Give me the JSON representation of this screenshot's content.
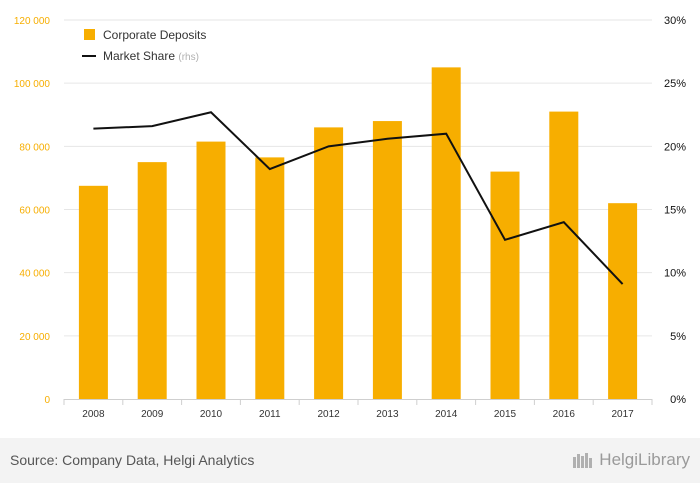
{
  "chart_data": {
    "type": "bar",
    "categories": [
      "2008",
      "2009",
      "2010",
      "2011",
      "2012",
      "2013",
      "2014",
      "2015",
      "2016",
      "2017"
    ],
    "series": [
      {
        "name": "Corporate Deposits",
        "kind": "bar",
        "axis": "left",
        "color": "#f7ae00",
        "values": [
          67500,
          75000,
          81500,
          76500,
          86000,
          88000,
          105000,
          72000,
          91000,
          62000
        ]
      },
      {
        "name": "Market Share",
        "name_suffix": "(rhs)",
        "kind": "line",
        "axis": "right",
        "color": "#111111",
        "values": [
          21.4,
          21.6,
          22.7,
          18.2,
          20.0,
          20.6,
          21.0,
          12.6,
          14.0,
          9.1
        ]
      }
    ],
    "y_left": {
      "ylim": [
        0,
        120000
      ],
      "ticks": [
        0,
        20000,
        40000,
        60000,
        80000,
        100000,
        120000
      ],
      "tick_labels": [
        "0",
        "20 000",
        "40 000",
        "60 000",
        "80 000",
        "100 000",
        "120 000"
      ],
      "label_color": "#f7ae00"
    },
    "y_right": {
      "ylim": [
        0,
        30
      ],
      "ticks": [
        0,
        5,
        10,
        15,
        20,
        25,
        30
      ],
      "tick_labels": [
        "0%",
        "5%",
        "10%",
        "15%",
        "20%",
        "25%",
        "30%"
      ]
    },
    "grid": true,
    "legend_position": "top-left"
  },
  "footer": {
    "source": "Source: Company Data, Helgi Analytics",
    "brand": "HelgiLibrary"
  }
}
